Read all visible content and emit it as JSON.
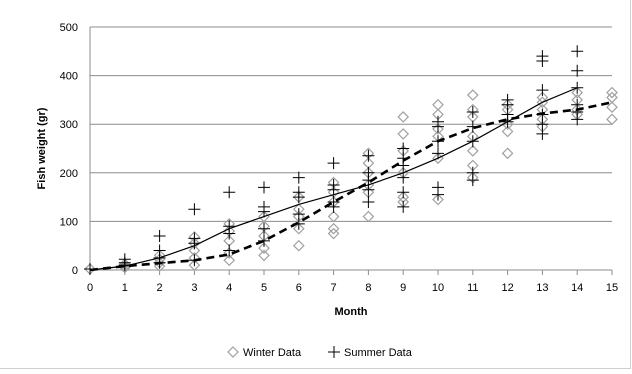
{
  "chart_data": {
    "type": "scatter",
    "title": "",
    "xlabel": "Month",
    "ylabel": "Fish weight (gr)",
    "xlim": [
      0,
      15
    ],
    "ylim": [
      0,
      500
    ],
    "x_ticks": [
      "0",
      "1",
      "2",
      "3",
      "4",
      "5",
      "6",
      "7",
      "8",
      "9",
      "10",
      "11",
      "12",
      "13",
      "14",
      "15"
    ],
    "y_ticks": [
      "0",
      "100",
      "200",
      "300",
      "400",
      "500"
    ],
    "grid": "horizontal",
    "legend_position": "bottom",
    "series": [
      {
        "name": "Winter Data",
        "marker": "diamond",
        "color": "#a0a0a0",
        "points": [
          [
            0,
            2
          ],
          [
            1,
            5
          ],
          [
            1,
            8
          ],
          [
            1,
            12
          ],
          [
            2,
            8
          ],
          [
            2,
            15
          ],
          [
            2,
            22
          ],
          [
            2,
            30
          ],
          [
            3,
            10
          ],
          [
            3,
            25
          ],
          [
            3,
            40
          ],
          [
            3,
            55
          ],
          [
            3,
            68
          ],
          [
            4,
            20
          ],
          [
            4,
            35
          ],
          [
            4,
            60
          ],
          [
            4,
            80
          ],
          [
            4,
            95
          ],
          [
            5,
            30
          ],
          [
            5,
            45
          ],
          [
            5,
            70
          ],
          [
            5,
            90
          ],
          [
            5,
            110
          ],
          [
            6,
            50
          ],
          [
            6,
            85
          ],
          [
            6,
            110
          ],
          [
            6,
            125
          ],
          [
            6,
            150
          ],
          [
            7,
            75
          ],
          [
            7,
            85
          ],
          [
            7,
            110
          ],
          [
            7,
            140
          ],
          [
            7,
            160
          ],
          [
            7,
            180
          ],
          [
            8,
            110
          ],
          [
            8,
            160
          ],
          [
            8,
            175
          ],
          [
            8,
            200
          ],
          [
            8,
            220
          ],
          [
            8,
            240
          ],
          [
            9,
            140
          ],
          [
            9,
            150
          ],
          [
            9,
            200
          ],
          [
            9,
            245
          ],
          [
            9,
            280
          ],
          [
            9,
            315
          ],
          [
            10,
            145
          ],
          [
            10,
            230
          ],
          [
            10,
            275
          ],
          [
            10,
            290
          ],
          [
            10,
            320
          ],
          [
            10,
            340
          ],
          [
            11,
            190
          ],
          [
            11,
            215
          ],
          [
            11,
            245
          ],
          [
            11,
            275
          ],
          [
            11,
            315
          ],
          [
            11,
            330
          ],
          [
            11,
            360
          ],
          [
            12,
            240
          ],
          [
            12,
            285
          ],
          [
            12,
            300
          ],
          [
            12,
            330
          ],
          [
            12,
            340
          ],
          [
            13,
            295
          ],
          [
            13,
            310
          ],
          [
            13,
            330
          ],
          [
            13,
            345
          ],
          [
            13,
            355
          ],
          [
            14,
            320
          ],
          [
            14,
            330
          ],
          [
            14,
            350
          ],
          [
            14,
            365
          ],
          [
            15,
            310
          ],
          [
            15,
            335
          ],
          [
            15,
            355
          ],
          [
            15,
            365
          ]
        ]
      },
      {
        "name": "Summer Data",
        "marker": "plus",
        "color": "#000000",
        "points": [
          [
            0,
            2
          ],
          [
            1,
            10
          ],
          [
            1,
            15
          ],
          [
            1,
            22
          ],
          [
            2,
            15
          ],
          [
            2,
            25
          ],
          [
            2,
            40
          ],
          [
            2,
            70
          ],
          [
            3,
            20
          ],
          [
            3,
            55
          ],
          [
            3,
            65
          ],
          [
            3,
            125
          ],
          [
            4,
            40
          ],
          [
            4,
            75
          ],
          [
            4,
            90
          ],
          [
            4,
            160
          ],
          [
            5,
            60
          ],
          [
            5,
            85
          ],
          [
            5,
            120
          ],
          [
            5,
            130
          ],
          [
            5,
            170
          ],
          [
            6,
            95
          ],
          [
            6,
            115
          ],
          [
            6,
            150
          ],
          [
            6,
            160
          ],
          [
            6,
            190
          ],
          [
            7,
            130
          ],
          [
            7,
            140
          ],
          [
            7,
            165
          ],
          [
            7,
            175
          ],
          [
            7,
            220
          ],
          [
            8,
            140
          ],
          [
            8,
            165
          ],
          [
            8,
            185
          ],
          [
            8,
            200
          ],
          [
            8,
            235
          ],
          [
            9,
            130
          ],
          [
            9,
            160
          ],
          [
            9,
            190
          ],
          [
            9,
            215
          ],
          [
            9,
            230
          ],
          [
            9,
            250
          ],
          [
            10,
            155
          ],
          [
            10,
            170
          ],
          [
            10,
            240
          ],
          [
            10,
            265
          ],
          [
            10,
            295
          ],
          [
            10,
            305
          ],
          [
            11,
            185
          ],
          [
            11,
            200
          ],
          [
            11,
            265
          ],
          [
            11,
            295
          ],
          [
            11,
            325
          ],
          [
            12,
            305
          ],
          [
            12,
            320
          ],
          [
            12,
            340
          ],
          [
            12,
            350
          ],
          [
            13,
            280
          ],
          [
            13,
            300
          ],
          [
            13,
            320
          ],
          [
            13,
            370
          ],
          [
            13,
            430
          ],
          [
            13,
            440
          ],
          [
            14,
            310
          ],
          [
            14,
            325
          ],
          [
            14,
            340
          ],
          [
            14,
            375
          ],
          [
            14,
            410
          ],
          [
            14,
            450
          ]
        ]
      },
      {
        "marker": "none",
        "line": "solid",
        "color": "#000000",
        "points": [
          [
            0,
            0
          ],
          [
            1,
            8
          ],
          [
            2,
            25
          ],
          [
            3,
            50
          ],
          [
            4,
            85
          ],
          [
            5,
            110
          ],
          [
            6,
            135
          ],
          [
            7,
            155
          ],
          [
            8,
            175
          ],
          [
            9,
            200
          ],
          [
            10,
            230
          ],
          [
            11,
            265
          ],
          [
            12,
            305
          ],
          [
            13,
            345
          ],
          [
            14,
            375
          ]
        ]
      },
      {
        "marker": "none",
        "line": "dashed",
        "color": "#000000",
        "points": [
          [
            0,
            0
          ],
          [
            1,
            8
          ],
          [
            2,
            14
          ],
          [
            3,
            20
          ],
          [
            4,
            32
          ],
          [
            5,
            60
          ],
          [
            6,
            98
          ],
          [
            7,
            140
          ],
          [
            8,
            180
          ],
          [
            9,
            225
          ],
          [
            10,
            265
          ],
          [
            11,
            292
          ],
          [
            12,
            310
          ],
          [
            13,
            322
          ],
          [
            14,
            330
          ],
          [
            15,
            345
          ]
        ]
      }
    ]
  }
}
